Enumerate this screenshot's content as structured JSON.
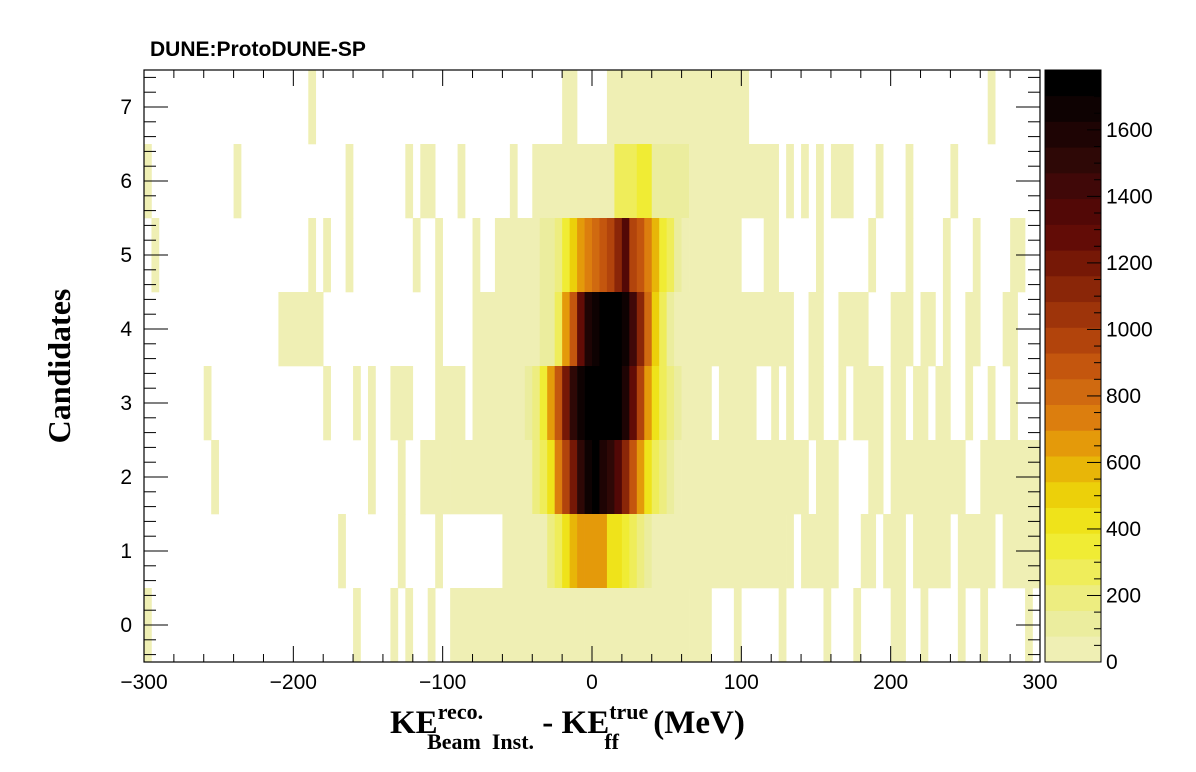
{
  "chart_data": {
    "type": "heatmap",
    "title": "DUNE:ProtoDUNE-SP",
    "xlabel": {
      "base1": "KE",
      "sup1": "reco.",
      "sub1": "Beam  Inst.",
      "mid": " - KE",
      "sup2": "true",
      "sub2": "ff",
      "tail": " (MeV)"
    },
    "ylabel": "Candidates",
    "xlim": [
      -300,
      300
    ],
    "ylim": [
      -0.5,
      7.5
    ],
    "x_ticks": [
      -300,
      -200,
      -100,
      0,
      100,
      200,
      300
    ],
    "x_tick_labels": [
      "−300",
      "−200",
      "−100",
      "0",
      "100",
      "200",
      "300"
    ],
    "y_ticks": [
      0,
      1,
      2,
      3,
      4,
      5,
      6,
      7
    ],
    "y_tick_labels": [
      "0",
      "1",
      "2",
      "3",
      "4",
      "5",
      "6",
      "7"
    ],
    "colorbar": {
      "min": 0,
      "max": 1780,
      "ticks": [
        0,
        200,
        400,
        600,
        800,
        1000,
        1200,
        1400,
        1600
      ],
      "tick_labels": [
        "0",
        "200",
        "400",
        "600",
        "800",
        "1000",
        "1200",
        "1400",
        "1600"
      ],
      "palette": [
        "#efefb4",
        "#ebed9e",
        "#eded80",
        "#efed5a",
        "#f0ec34",
        "#efe31a",
        "#ecd00a",
        "#e8b608",
        "#e49a0a",
        "#dc7e0e",
        "#d06a10",
        "#c4560e",
        "#b2440c",
        "#9e340a",
        "#8a2608",
        "#761806",
        "#620c06",
        "#520806",
        "#400808",
        "#2e0806",
        "#1e0404",
        "#0e0202",
        "#000000"
      ]
    },
    "bin_width": 5,
    "cells": [
      {
        "y": 7,
        "x": [
          [
            -190,
            -185,
            30
          ],
          [
            -20,
            -10,
            30
          ],
          [
            10,
            105,
            30
          ],
          [
            265,
            270,
            30
          ]
        ]
      },
      {
        "y": 6,
        "x": [
          [
            -300,
            -295,
            30
          ],
          [
            -240,
            -235,
            30
          ],
          [
            -165,
            -160,
            30
          ],
          [
            -125,
            -120,
            30
          ],
          [
            -115,
            -105,
            30
          ],
          [
            -90,
            -85,
            30
          ],
          [
            -55,
            -50,
            30
          ],
          [
            -40,
            15,
            60
          ],
          [
            15,
            30,
            260
          ],
          [
            30,
            40,
            380
          ],
          [
            40,
            65,
            120
          ],
          [
            65,
            125,
            40
          ],
          [
            130,
            135,
            30
          ],
          [
            140,
            145,
            30
          ],
          [
            150,
            155,
            30
          ],
          [
            160,
            175,
            30
          ],
          [
            190,
            195,
            30
          ],
          [
            210,
            215,
            30
          ],
          [
            240,
            245,
            30
          ]
        ]
      },
      {
        "y": 5,
        "x": [
          [
            -295,
            -290,
            30
          ],
          [
            -190,
            -185,
            30
          ],
          [
            -180,
            -175,
            30
          ],
          [
            -165,
            -160,
            30
          ],
          [
            -120,
            -115,
            30
          ],
          [
            -105,
            -100,
            30
          ],
          [
            -80,
            -75,
            30
          ],
          [
            -65,
            -60,
            30
          ],
          [
            -60,
            -35,
            40
          ],
          [
            -35,
            -25,
            120
          ],
          [
            -25,
            -20,
            200
          ],
          [
            -20,
            -15,
            320
          ],
          [
            -15,
            -10,
            480
          ],
          [
            -10,
            -5,
            620
          ],
          [
            -5,
            0,
            700
          ],
          [
            0,
            5,
            820
          ],
          [
            5,
            10,
            880
          ],
          [
            10,
            15,
            960
          ],
          [
            15,
            20,
            1100
          ],
          [
            20,
            25,
            1320
          ],
          [
            25,
            30,
            980
          ],
          [
            30,
            35,
            860
          ],
          [
            35,
            40,
            700
          ],
          [
            40,
            45,
            560
          ],
          [
            45,
            50,
            380
          ],
          [
            50,
            55,
            240
          ],
          [
            55,
            60,
            120
          ],
          [
            60,
            65,
            40
          ],
          [
            65,
            100,
            30
          ],
          [
            115,
            125,
            30
          ],
          [
            150,
            155,
            30
          ],
          [
            185,
            190,
            30
          ],
          [
            210,
            215,
            30
          ],
          [
            235,
            240,
            30
          ],
          [
            255,
            260,
            30
          ],
          [
            280,
            290,
            30
          ]
        ]
      },
      {
        "y": 4,
        "x": [
          [
            -210,
            -180,
            30
          ],
          [
            -105,
            -100,
            30
          ],
          [
            -80,
            -35,
            30
          ],
          [
            -35,
            -25,
            120
          ],
          [
            -25,
            -20,
            300
          ],
          [
            -20,
            -15,
            640
          ],
          [
            -15,
            -10,
            900
          ],
          [
            -10,
            -5,
            1300
          ],
          [
            -5,
            0,
            1600
          ],
          [
            0,
            5,
            1700
          ],
          [
            5,
            10,
            1740
          ],
          [
            10,
            15,
            1760
          ],
          [
            15,
            20,
            1720
          ],
          [
            20,
            25,
            1640
          ],
          [
            25,
            30,
            1440
          ],
          [
            30,
            35,
            1160
          ],
          [
            35,
            40,
            820
          ],
          [
            40,
            45,
            480
          ],
          [
            45,
            50,
            260
          ],
          [
            50,
            55,
            120
          ],
          [
            55,
            110,
            40
          ],
          [
            110,
            135,
            30
          ],
          [
            145,
            155,
            30
          ],
          [
            165,
            185,
            30
          ],
          [
            200,
            215,
            30
          ],
          [
            220,
            230,
            30
          ],
          [
            235,
            240,
            30
          ],
          [
            250,
            260,
            30
          ],
          [
            275,
            285,
            30
          ]
        ]
      },
      {
        "y": 3,
        "x": [
          [
            -260,
            -255,
            30
          ],
          [
            -180,
            -175,
            30
          ],
          [
            -160,
            -155,
            30
          ],
          [
            -150,
            -145,
            30
          ],
          [
            -135,
            -120,
            30
          ],
          [
            -105,
            -85,
            30
          ],
          [
            -80,
            -45,
            30
          ],
          [
            -45,
            -40,
            120
          ],
          [
            -40,
            -35,
            220
          ],
          [
            -35,
            -30,
            360
          ],
          [
            -30,
            -25,
            620
          ],
          [
            -25,
            -20,
            900
          ],
          [
            -20,
            -15,
            1200
          ],
          [
            -15,
            -10,
            1480
          ],
          [
            -10,
            -5,
            1680
          ],
          [
            -5,
            0,
            1760
          ],
          [
            0,
            5,
            1780
          ],
          [
            5,
            10,
            1780
          ],
          [
            10,
            15,
            1760
          ],
          [
            15,
            20,
            1720
          ],
          [
            20,
            25,
            1560
          ],
          [
            25,
            30,
            1300
          ],
          [
            30,
            35,
            980
          ],
          [
            35,
            40,
            680
          ],
          [
            40,
            45,
            460
          ],
          [
            45,
            50,
            280
          ],
          [
            50,
            55,
            180
          ],
          [
            55,
            60,
            100
          ],
          [
            60,
            80,
            40
          ],
          [
            85,
            110,
            30
          ],
          [
            120,
            125,
            30
          ],
          [
            130,
            135,
            30
          ],
          [
            145,
            155,
            30
          ],
          [
            165,
            170,
            30
          ],
          [
            175,
            195,
            30
          ],
          [
            200,
            210,
            30
          ],
          [
            215,
            225,
            30
          ],
          [
            230,
            240,
            30
          ],
          [
            250,
            255,
            30
          ],
          [
            265,
            270,
            30
          ],
          [
            280,
            285,
            30
          ]
        ]
      },
      {
        "y": 2,
        "x": [
          [
            -255,
            -250,
            30
          ],
          [
            -150,
            -145,
            30
          ],
          [
            -130,
            -125,
            30
          ],
          [
            -115,
            -95,
            30
          ],
          [
            -95,
            -55,
            30
          ],
          [
            -55,
            -40,
            60
          ],
          [
            -40,
            -35,
            160
          ],
          [
            -35,
            -30,
            260
          ],
          [
            -30,
            -25,
            440
          ],
          [
            -25,
            -20,
            700
          ],
          [
            -20,
            -15,
            980
          ],
          [
            -15,
            -10,
            1220
          ],
          [
            -10,
            -5,
            1480
          ],
          [
            -5,
            0,
            1660
          ],
          [
            0,
            5,
            1720
          ],
          [
            5,
            10,
            1620
          ],
          [
            10,
            15,
            1480
          ],
          [
            15,
            20,
            1320
          ],
          [
            20,
            25,
            1120
          ],
          [
            25,
            30,
            900
          ],
          [
            30,
            35,
            620
          ],
          [
            35,
            40,
            420
          ],
          [
            40,
            45,
            280
          ],
          [
            45,
            50,
            180
          ],
          [
            50,
            55,
            100
          ],
          [
            55,
            60,
            60
          ],
          [
            60,
            100,
            40
          ],
          [
            100,
            145,
            30
          ],
          [
            150,
            165,
            30
          ],
          [
            185,
            195,
            30
          ],
          [
            200,
            250,
            30
          ],
          [
            260,
            300,
            30
          ]
        ]
      },
      {
        "y": 1,
        "x": [
          [
            -170,
            -165,
            30
          ],
          [
            -130,
            -125,
            30
          ],
          [
            -105,
            -100,
            30
          ],
          [
            -60,
            -30,
            40
          ],
          [
            -30,
            -25,
            160
          ],
          [
            -25,
            -20,
            280
          ],
          [
            -20,
            -15,
            460
          ],
          [
            -15,
            -10,
            560
          ],
          [
            -10,
            -5,
            640
          ],
          [
            -5,
            0,
            680
          ],
          [
            0,
            5,
            680
          ],
          [
            5,
            10,
            620
          ],
          [
            10,
            15,
            460
          ],
          [
            15,
            20,
            420
          ],
          [
            20,
            25,
            380
          ],
          [
            25,
            30,
            280
          ],
          [
            30,
            35,
            180
          ],
          [
            35,
            40,
            100
          ],
          [
            40,
            100,
            40
          ],
          [
            100,
            130,
            30
          ],
          [
            130,
            135,
            30
          ],
          [
            140,
            145,
            30
          ],
          [
            145,
            165,
            30
          ],
          [
            180,
            190,
            30
          ],
          [
            195,
            210,
            30
          ],
          [
            215,
            240,
            30
          ],
          [
            245,
            270,
            30
          ],
          [
            275,
            300,
            30
          ]
        ]
      },
      {
        "y": 0,
        "x": [
          [
            -300,
            -295,
            30
          ],
          [
            -160,
            -155,
            30
          ],
          [
            -135,
            -130,
            30
          ],
          [
            -125,
            -120,
            30
          ],
          [
            -110,
            -105,
            30
          ],
          [
            -95,
            -65,
            30
          ],
          [
            -65,
            -5,
            40
          ],
          [
            -5,
            0,
            70
          ],
          [
            0,
            65,
            40
          ],
          [
            65,
            80,
            30
          ],
          [
            95,
            100,
            30
          ],
          [
            125,
            130,
            30
          ],
          [
            155,
            160,
            30
          ],
          [
            175,
            180,
            30
          ],
          [
            200,
            210,
            30
          ],
          [
            220,
            225,
            30
          ],
          [
            245,
            250,
            30
          ],
          [
            260,
            265,
            30
          ],
          [
            290,
            295,
            30
          ]
        ]
      }
    ]
  }
}
